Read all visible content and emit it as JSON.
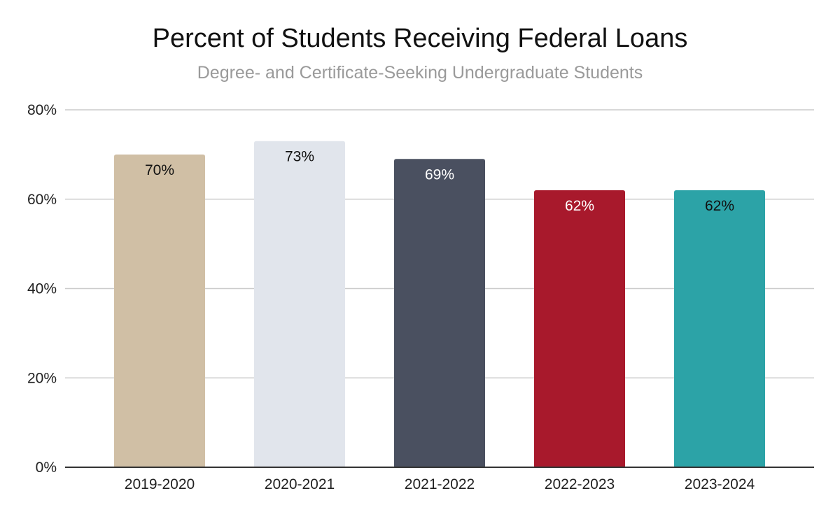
{
  "chart_data": {
    "type": "bar",
    "title": "Percent of Students Receiving Federal Loans",
    "subtitle": "Degree- and Certificate-Seeking Undergraduate Students",
    "xlabel": "",
    "ylabel": "",
    "categories": [
      "2019-2020",
      "2020-2021",
      "2021-2022",
      "2022-2023",
      "2023-2024"
    ],
    "values": [
      70,
      73,
      69,
      62,
      62
    ],
    "data_labels": [
      "70%",
      "73%",
      "69%",
      "62%",
      "62%"
    ],
    "bar_colors": [
      "#d0bfa5",
      "#e1e5ec",
      "#4a5060",
      "#a8192c",
      "#2ca3a7"
    ],
    "label_colors": [
      "#111111",
      "#111111",
      "#ffffff",
      "#ffffff",
      "#111111"
    ],
    "ylim": [
      0,
      80
    ],
    "yticks": [
      0,
      20,
      40,
      60,
      80
    ],
    "ytick_labels": [
      "0%",
      "20%",
      "40%",
      "60%",
      "80%"
    ],
    "grid": true,
    "legend": "none"
  }
}
